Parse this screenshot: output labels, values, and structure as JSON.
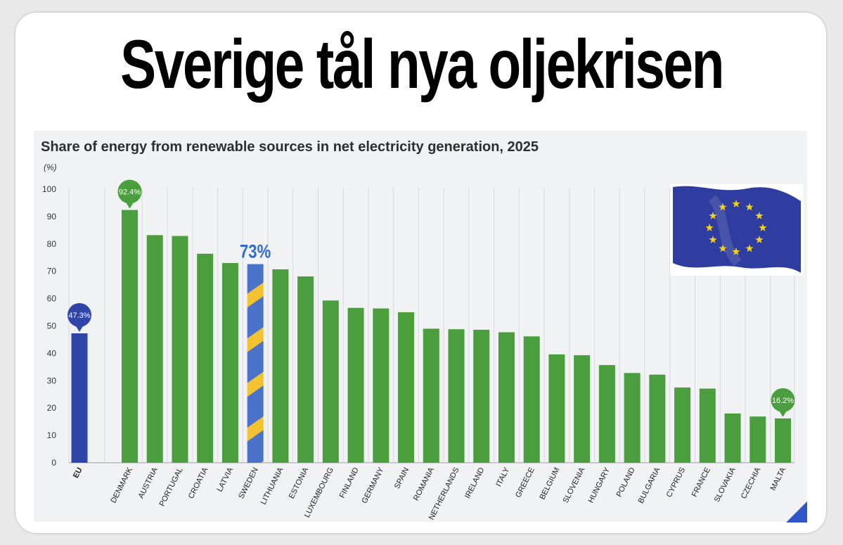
{
  "headline": "Sverige tål nya oljekrisen",
  "chart_data": {
    "type": "bar",
    "title": "Share of energy from renewable sources in net electricity generation, 2025",
    "ylabel": "(%)",
    "xlabel": "",
    "ylim": [
      0,
      100
    ],
    "yticks": [
      0,
      10,
      20,
      30,
      40,
      50,
      60,
      70,
      80,
      90,
      100
    ],
    "grid": true,
    "categories": [
      "EU",
      "DENMARK",
      "AUSTRIA",
      "PORTUGAL",
      "CROATIA",
      "LATVIA",
      "SWEDEN",
      "LITHUANIA",
      "ESTONIA",
      "LUXEMBOURG",
      "FINLAND",
      "GERMANY",
      "SPAIN",
      "ROMANIA",
      "NETHERLANDS",
      "IRELAND",
      "ITALY",
      "GREECE",
      "BELGIUM",
      "SLOVENIA",
      "HUNGARY",
      "POLAND",
      "BULGARIA",
      "CYPRUS",
      "FRANCE",
      "SLOVAKIA",
      "CZECHIA",
      "MALTA"
    ],
    "values": [
      47.3,
      92.4,
      83.2,
      82.9,
      76.4,
      73.0,
      72.6,
      70.7,
      68.1,
      59.3,
      56.6,
      56.4,
      55.0,
      49.0,
      48.8,
      48.6,
      47.7,
      46.2,
      39.6,
      39.3,
      35.7,
      32.8,
      32.2,
      27.5,
      27.1,
      18.0,
      16.9,
      16.2
    ],
    "callouts": [
      {
        "category": "EU",
        "label": "47.3%",
        "style": "bubble-blue"
      },
      {
        "category": "DENMARK",
        "label": "92.4%",
        "style": "bubble-green"
      },
      {
        "category": "MALTA",
        "label": "16.2%",
        "style": "bubble-green"
      },
      {
        "category": "SWEDEN",
        "label": "73%",
        "style": "text-blue"
      }
    ],
    "colors": {
      "default": "#4b9e3d",
      "eu": "#2f46a8",
      "sweden_base": "#4a72c9",
      "sweden_stripe": "#f2c230",
      "callout_blue_text": "#2f6bd0",
      "grid": "#d7d9de",
      "tick": "#333333"
    }
  },
  "flag": {
    "icon": "eu-flag-icon",
    "blue": "#2e3d9f",
    "star": "#f4d21a"
  }
}
